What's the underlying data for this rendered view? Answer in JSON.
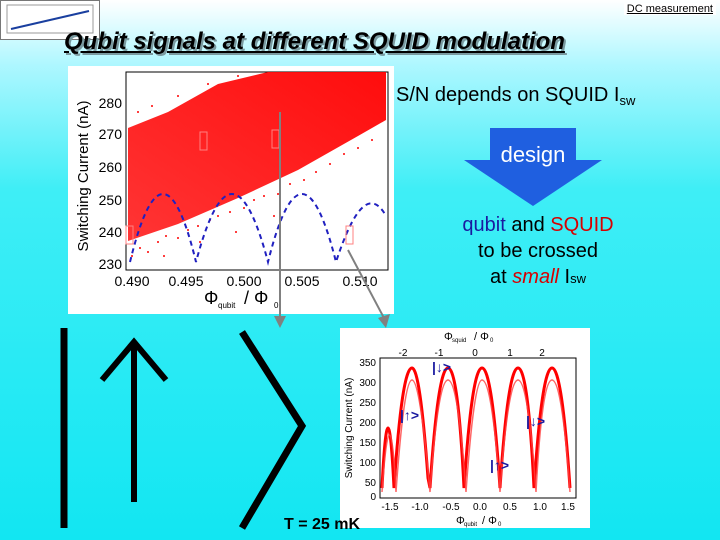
{
  "header": {
    "tag": "DC measurement"
  },
  "title": "Qubit signals at different SQUID modulation",
  "sn": {
    "text": "S/N depends on SQUID I",
    "sub": "sw"
  },
  "design": {
    "label": "design",
    "fill": "#1f5fe0"
  },
  "note": {
    "w1": "qubit",
    "w2": "and",
    "w3": "SQUID",
    "line2": "to be crossed",
    "line3_a": "at",
    "line3_b": "small",
    "line3_c": "I",
    "line3_sub": "sw"
  },
  "temperature": "T = 25 mK",
  "plot1": {
    "ylabel": "Switching Current (nA)",
    "yticks": [
      "280",
      "270",
      "260",
      "250",
      "240",
      "230"
    ],
    "xticks": [
      "0.490",
      "0.495",
      "0.500",
      "0.505",
      "0.510"
    ],
    "xlabel_phi": "Φ",
    "xlabel_sub1": "qubit",
    "xlabel_slash": "/ Φ",
    "xlabel_sub2": "0",
    "colors": {
      "data": "#ff0000",
      "fit": "#2020c0"
    }
  },
  "plot2": {
    "ylabel": "Switching Current (nA)",
    "yticks": [
      "350",
      "300",
      "250",
      "200",
      "150",
      "100",
      "50",
      "0"
    ],
    "xticks": [
      "-1.5",
      "-1.0",
      "-0.5",
      "0.0",
      "0.5",
      "1.0",
      "1.5"
    ],
    "top_label_phi": "Φ",
    "top_label_sub1": "squid",
    "top_label_rest": "/ Φ",
    "top_label_sub2": "0",
    "top_ticks": [
      "-2",
      "-1",
      "0",
      "1",
      "2"
    ],
    "xlabel_phi": "Φ",
    "xlabel_sub1": "qubit",
    "xlabel_rest": "/ Φ",
    "xlabel_sub2": "0",
    "ket_labels": [
      "|↓>",
      "|↑>",
      "|↓>",
      "|↑>"
    ]
  }
}
